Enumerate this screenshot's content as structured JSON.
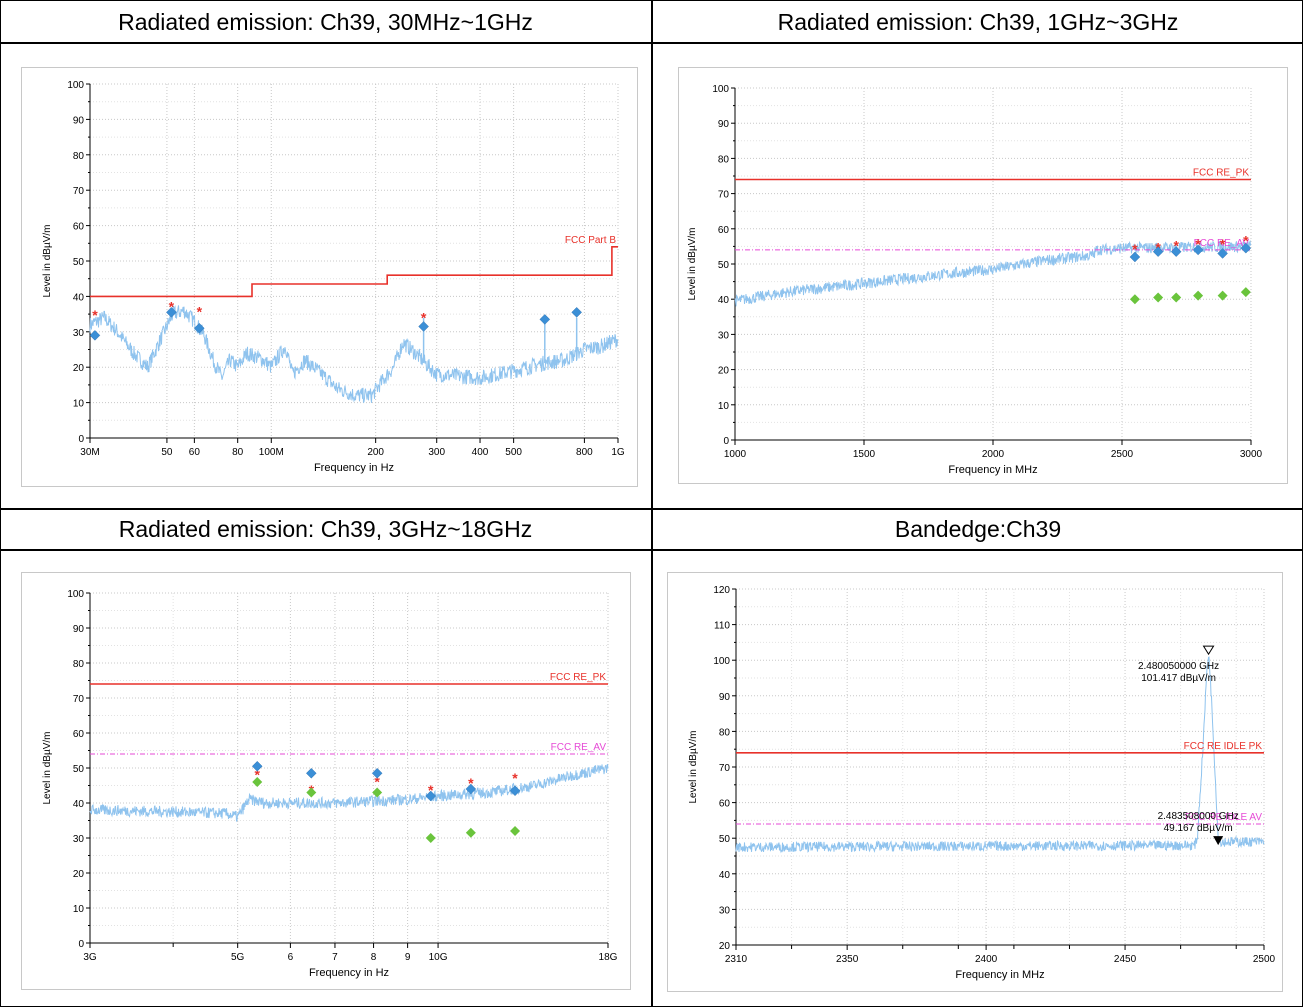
{
  "titles": {
    "c1": "Radiated emission: Ch39, 30MHz~1GHz",
    "c2": "Radiated emission: Ch39, 1GHz~3GHz",
    "c3": "Radiated emission: Ch39, 3GHz~18GHz",
    "c4": "Bandedge:Ch39"
  },
  "colors": {
    "limit_pk": "#e8312a",
    "limit_av": "#e64ad6",
    "trace": "#8fc3ee",
    "peak_star": "#e8312a",
    "qp_diamond": "#3b8fd6",
    "av_diamond": "#6ac43c",
    "grid": "#c8c8c8",
    "frame": "#000000"
  },
  "chart_data": [
    {
      "id": "c1",
      "type": "scatter",
      "xscale": "log",
      "xlim": [
        30,
        1000
      ],
      "ylim": [
        0,
        100
      ],
      "xlabel": "Frequency in Hz",
      "ylabel": "Level in dBµV/m",
      "yticks": [
        0,
        10,
        20,
        30,
        40,
        50,
        60,
        70,
        80,
        90,
        100
      ],
      "xticks": [
        {
          "v": 30,
          "t": "30M"
        },
        {
          "v": 50,
          "t": "50"
        },
        {
          "v": 60,
          "t": "60"
        },
        {
          "v": 80,
          "t": "80"
        },
        {
          "v": 100,
          "t": "100M"
        },
        {
          "v": 200,
          "t": "200"
        },
        {
          "v": 300,
          "t": "300"
        },
        {
          "v": 400,
          "t": "400"
        },
        {
          "v": 500,
          "t": "500"
        },
        {
          "v": 800,
          "t": "800"
        },
        {
          "v": 1000,
          "t": "1G"
        }
      ],
      "grid": true,
      "limits": [
        {
          "name": "FCC Part B",
          "style": "solid",
          "color": "#e8312a",
          "points": [
            [
              30,
              40
            ],
            [
              88,
              40
            ],
            [
              88,
              43.5
            ],
            [
              216,
              43.5
            ],
            [
              216,
              46
            ],
            [
              960,
              46
            ],
            [
              960,
              54
            ],
            [
              1000,
              54
            ]
          ]
        }
      ],
      "trace": {
        "anchors": [
          [
            30,
            32
          ],
          [
            33,
            34
          ],
          [
            36,
            30
          ],
          [
            40,
            24
          ],
          [
            44,
            20
          ],
          [
            48,
            28
          ],
          [
            52,
            35
          ],
          [
            56,
            36
          ],
          [
            60,
            33
          ],
          [
            64,
            29
          ],
          [
            68,
            22
          ],
          [
            72,
            17
          ],
          [
            76,
            22
          ],
          [
            80,
            20
          ],
          [
            85,
            24
          ],
          [
            90,
            23
          ],
          [
            95,
            22
          ],
          [
            100,
            20
          ],
          [
            110,
            26
          ],
          [
            115,
            18
          ],
          [
            125,
            22
          ],
          [
            140,
            18
          ],
          [
            155,
            14
          ],
          [
            175,
            12
          ],
          [
            195,
            12
          ],
          [
            205,
            15
          ],
          [
            225,
            20
          ],
          [
            240,
            27
          ],
          [
            260,
            24
          ],
          [
            300,
            18
          ],
          [
            400,
            17
          ],
          [
            500,
            19
          ],
          [
            600,
            21
          ],
          [
            700,
            22
          ],
          [
            800,
            25
          ],
          [
            900,
            26
          ],
          [
            1000,
            28
          ]
        ],
        "spikes": [
          [
            275,
            34
          ],
          [
            615,
            33
          ],
          [
            760,
            34
          ]
        ],
        "noise": 2.2
      },
      "peaks": [
        [
          31,
          35
        ],
        [
          51.5,
          37.5
        ],
        [
          62,
          36
        ],
        [
          275,
          34.3
        ]
      ],
      "qp": [
        [
          31,
          29
        ],
        [
          51.5,
          35.5
        ],
        [
          62,
          31
        ],
        [
          275,
          31.5
        ],
        [
          615,
          33.5
        ],
        [
          760,
          35.5
        ]
      ],
      "av": []
    },
    {
      "id": "c2",
      "type": "scatter",
      "xscale": "linear",
      "xlim": [
        1000,
        3000
      ],
      "ylim": [
        0,
        100
      ],
      "xlabel": "Frequency in MHz",
      "ylabel": "Level in dBµV/m",
      "yticks": [
        0,
        10,
        20,
        30,
        40,
        50,
        60,
        70,
        80,
        90,
        100
      ],
      "xticks": [
        {
          "v": 1000,
          "t": "1000"
        },
        {
          "v": 1500,
          "t": "1500"
        },
        {
          "v": 2000,
          "t": "2000"
        },
        {
          "v": 2500,
          "t": "2500"
        },
        {
          "v": 3000,
          "t": "3000"
        }
      ],
      "grid": true,
      "limits": [
        {
          "name": "FCC RE_PK",
          "style": "solid",
          "color": "#e8312a",
          "points": [
            [
              1000,
              74
            ],
            [
              3000,
              74
            ]
          ]
        },
        {
          "name": "FCC RE_AV",
          "style": "dash",
          "color": "#e64ad6",
          "points": [
            [
              1000,
              54
            ],
            [
              3000,
              54
            ]
          ]
        }
      ],
      "trace": {
        "anchors": [
          [
            1000,
            39.5
          ],
          [
            1200,
            42
          ],
          [
            1500,
            44.5
          ],
          [
            1800,
            47
          ],
          [
            2000,
            48.5
          ],
          [
            2200,
            51
          ],
          [
            2390,
            52.5
          ],
          [
            2400,
            54
          ],
          [
            2500,
            54.5
          ],
          [
            3000,
            55
          ]
        ],
        "spikes": [],
        "noise": 1.6
      },
      "peaks": [
        [
          2550,
          54.5
        ],
        [
          2640,
          55
        ],
        [
          2710,
          55.5
        ],
        [
          2795,
          56
        ],
        [
          2890,
          56
        ],
        [
          2980,
          57
        ]
      ],
      "qp": [
        [
          2550,
          52
        ],
        [
          2640,
          53.5
        ],
        [
          2710,
          53.5
        ],
        [
          2795,
          54
        ],
        [
          2890,
          53
        ],
        [
          2980,
          54.5
        ]
      ],
      "av": [
        [
          2550,
          40
        ],
        [
          2640,
          40.5
        ],
        [
          2710,
          40.5
        ],
        [
          2795,
          41
        ],
        [
          2890,
          41
        ],
        [
          2980,
          42
        ]
      ]
    },
    {
      "id": "c3",
      "type": "scatter",
      "xscale": "log",
      "xlim": [
        3,
        18
      ],
      "ylim": [
        0,
        100
      ],
      "xlabel": "Frequency in Hz",
      "ylabel": "Level in dBµV/m",
      "yticks": [
        0,
        10,
        20,
        30,
        40,
        50,
        60,
        70,
        80,
        90,
        100
      ],
      "xticks": [
        {
          "v": 3,
          "t": "3G"
        },
        {
          "v": 5,
          "t": "5G"
        },
        {
          "v": 6,
          "t": "6"
        },
        {
          "v": 7,
          "t": "7"
        },
        {
          "v": 8,
          "t": "8"
        },
        {
          "v": 9,
          "t": "9"
        },
        {
          "v": 10,
          "t": "10G"
        },
        {
          "v": 18,
          "t": "18G"
        }
      ],
      "xminor": [
        4
      ],
      "grid": true,
      "limits": [
        {
          "name": "FCC RE_PK",
          "style": "solid",
          "color": "#e8312a",
          "points": [
            [
              3,
              74
            ],
            [
              18,
              74
            ]
          ]
        },
        {
          "name": "FCC RE_AV",
          "style": "dash",
          "color": "#e64ad6",
          "points": [
            [
              3,
              54
            ],
            [
              18,
              54
            ]
          ]
        }
      ],
      "trace": {
        "anchors": [
          [
            3,
            38
          ],
          [
            4,
            37.5
          ],
          [
            4.8,
            37
          ],
          [
            5,
            36
          ],
          [
            5.2,
            41
          ],
          [
            5.5,
            40
          ],
          [
            7,
            40
          ],
          [
            9,
            41
          ],
          [
            10,
            42
          ],
          [
            12,
            43
          ],
          [
            14,
            45
          ],
          [
            16,
            48
          ],
          [
            18,
            50
          ]
        ],
        "spikes": [],
        "noise": 1.6
      },
      "peaks": [
        [
          5.35,
          48.5
        ],
        [
          6.45,
          44
        ],
        [
          8.1,
          46.5
        ],
        [
          9.75,
          44
        ],
        [
          11.2,
          46
        ],
        [
          13.05,
          47.5
        ]
      ],
      "qp": [
        [
          5.35,
          50.5
        ],
        [
          6.45,
          48.5
        ],
        [
          8.1,
          48.5
        ],
        [
          9.75,
          42
        ],
        [
          11.2,
          44
        ],
        [
          13.05,
          43.5
        ]
      ],
      "av": [
        [
          5.35,
          46
        ],
        [
          6.45,
          43
        ],
        [
          8.1,
          43
        ],
        [
          9.75,
          30
        ],
        [
          11.2,
          31.5
        ],
        [
          13.05,
          32
        ]
      ]
    },
    {
      "id": "c4",
      "type": "line",
      "xscale": "linear",
      "xlim": [
        2310,
        2500
      ],
      "ylim": [
        20,
        120
      ],
      "xlabel": "Frequency in MHz",
      "ylabel": "Level in dBµV/m",
      "yticks": [
        20,
        30,
        40,
        50,
        60,
        70,
        80,
        90,
        100,
        110,
        120
      ],
      "xticks": [
        {
          "v": 2310,
          "t": "2310"
        },
        {
          "v": 2350,
          "t": "2350"
        },
        {
          "v": 2400,
          "t": "2400"
        },
        {
          "v": 2450,
          "t": "2450"
        },
        {
          "v": 2500,
          "t": "2500"
        }
      ],
      "xminor": [
        2330,
        2370,
        2390,
        2410,
        2430,
        2470,
        2490
      ],
      "grid": true,
      "limits": [
        {
          "name": "FCC RE IDLE PK",
          "style": "solid",
          "color": "#e8312a",
          "points": [
            [
              2310,
              74
            ],
            [
              2500,
              74
            ]
          ]
        },
        {
          "name": "FCC RE IDLE AV",
          "style": "dash",
          "color": "#e64ad6",
          "points": [
            [
              2310,
              54
            ],
            [
              2500,
              54
            ]
          ]
        }
      ],
      "trace": {
        "anchors": [
          [
            2310,
            47.5
          ],
          [
            2475,
            48
          ],
          [
            2476,
            50
          ],
          [
            2478,
            75
          ],
          [
            2479.5,
            98
          ],
          [
            2480,
            101.4
          ],
          [
            2480.5,
            98
          ],
          [
            2482,
            75
          ],
          [
            2483.5,
            50
          ],
          [
            2484,
            49
          ],
          [
            2500,
            49
          ]
        ],
        "spikes": [],
        "noise": 1.4
      },
      "markers": [
        {
          "x": 2480.05,
          "y": 101.417,
          "type": "open",
          "label1": "2.480050000 GHz",
          "label2": "101.417 dBµV/m"
        },
        {
          "x": 2483.508,
          "y": 49.167,
          "type": "filled",
          "label1": "2.483508000 GHz",
          "label2": "49.167 dBµV/m"
        }
      ],
      "peaks": [],
      "qp": [],
      "av": []
    }
  ]
}
